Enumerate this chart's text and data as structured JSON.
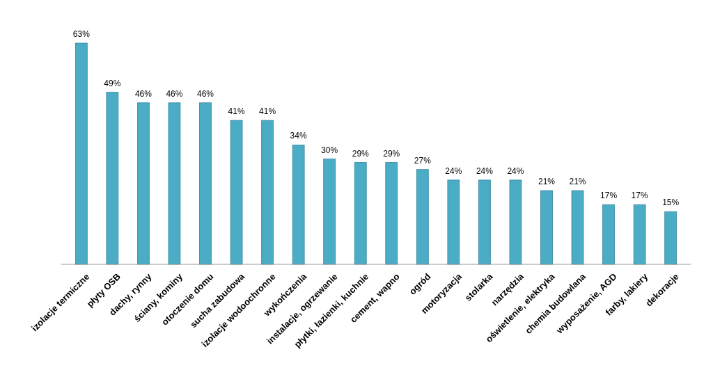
{
  "chart_data": {
    "type": "bar",
    "categories": [
      "izolacje termiczne",
      "płyty OSB",
      "dachy, rynny",
      "ściany, kominy",
      "otoczenie domu",
      "sucha zabudowa",
      "izolacje wodoochronne",
      "wykończenia",
      "instalacje, ogrzewanie",
      "płytki, łazienki, kuchnie",
      "cement, wapno",
      "ogród",
      "motoryzacja",
      "stolarka",
      "narzędzia",
      "oświetlenie, elektryka",
      "chemia budowlana",
      "wyposażenie, AGD",
      "farby, lakiery",
      "dekoracje"
    ],
    "values": [
      63,
      49,
      46,
      46,
      46,
      41,
      41,
      34,
      30,
      29,
      29,
      27,
      24,
      24,
      24,
      21,
      21,
      17,
      17,
      15
    ],
    "value_labels": [
      "63%",
      "49%",
      "46%",
      "46%",
      "46%",
      "41%",
      "41%",
      "34%",
      "30%",
      "29%",
      "29%",
      "27%",
      "24%",
      "24%",
      "24%",
      "21%",
      "21%",
      "17%",
      "17%",
      "15%"
    ],
    "color": "#4bacc6"
  }
}
